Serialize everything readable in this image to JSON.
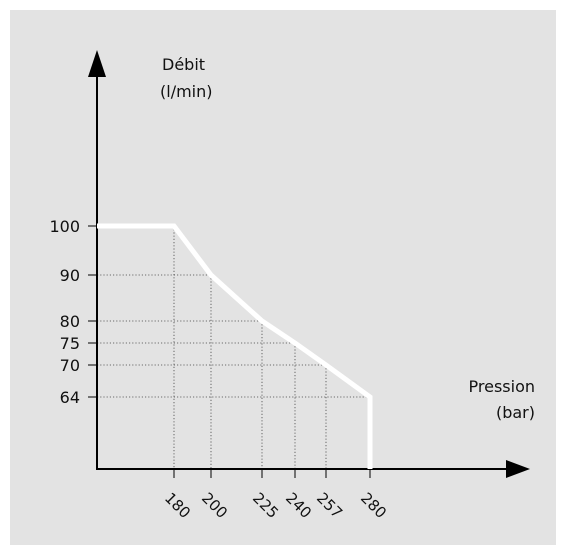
{
  "chart_data": {
    "type": "line",
    "xlabel_line1": "Pression",
    "xlabel_line2": "(bar)",
    "ylabel_line1": "Débit",
    "ylabel_line2": "(l/min)",
    "x_ticks": [
      180,
      200,
      225,
      240,
      257,
      280
    ],
    "y_ticks": [
      64,
      70,
      75,
      80,
      90,
      100
    ],
    "series": [
      {
        "x": [
          0,
          180,
          200,
          225,
          240,
          257,
          280,
          280
        ],
        "y": [
          100,
          100,
          90,
          80,
          75,
          70,
          64,
          0
        ]
      }
    ],
    "line_color": "#ffffff",
    "grid": "dotted guides from curve to axes"
  }
}
